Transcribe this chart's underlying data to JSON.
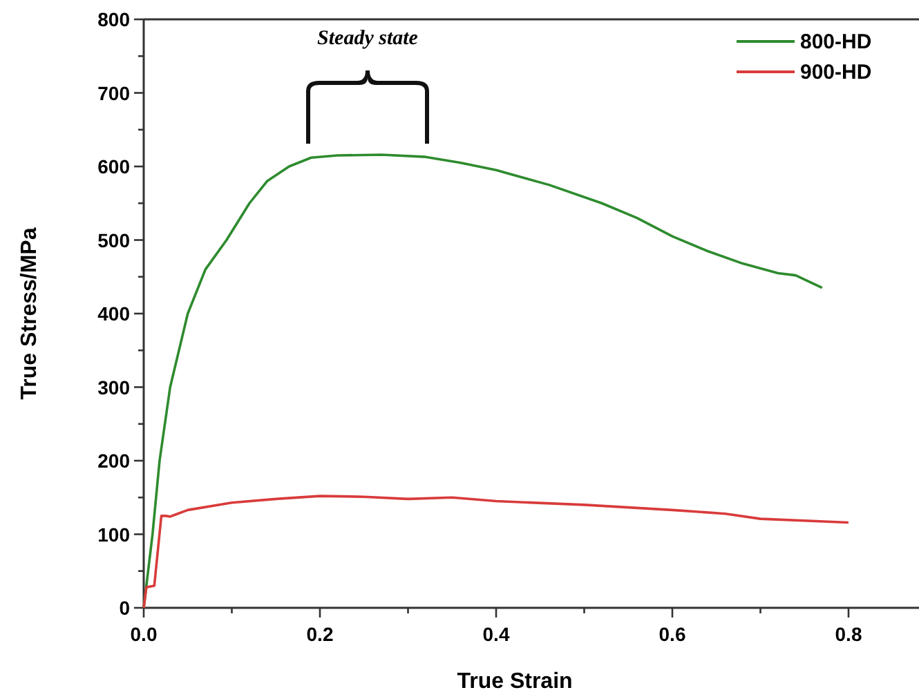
{
  "chart_data": {
    "type": "line",
    "xlabel": "True Strain",
    "ylabel": "True Stress/MPa",
    "xlim": [
      0,
      0.88
    ],
    "ylim": [
      0,
      800
    ],
    "xticks": [
      {
        "value": 0,
        "label": "0.0"
      },
      {
        "value": 0.1,
        "label": null
      },
      {
        "value": 0.2,
        "label": "0.2"
      },
      {
        "value": 0.3,
        "label": null
      },
      {
        "value": 0.4,
        "label": "0.4"
      },
      {
        "value": 0.5,
        "label": null
      },
      {
        "value": 0.6,
        "label": "0.6"
      },
      {
        "value": 0.7,
        "label": null
      },
      {
        "value": 0.8,
        "label": "0.8"
      }
    ],
    "yticks": [
      0,
      {
        "value": 50,
        "label": null
      },
      100,
      {
        "value": 150,
        "label": null
      },
      200,
      {
        "value": 250,
        "label": null
      },
      300,
      {
        "value": 350,
        "label": null
      },
      400,
      {
        "value": 450,
        "label": null
      },
      500,
      {
        "value": 550,
        "label": null
      },
      600,
      {
        "value": 650,
        "label": null
      },
      700,
      {
        "value": 750,
        "label": null
      },
      800
    ],
    "grid": false,
    "legend": "top right",
    "marker": "none",
    "line_style": "solid",
    "annotations": [
      "Steady state"
    ],
    "series": [
      {
        "name": "800-HD",
        "color": "#2e8b2e",
        "x": [
          0,
          0.01,
          0.018,
          0.03,
          0.05,
          0.07,
          0.094,
          0.12,
          0.14,
          0.165,
          0.19,
          0.22,
          0.27,
          0.32,
          0.36,
          0.4,
          0.46,
          0.52,
          0.56,
          0.6,
          0.64,
          0.68,
          0.72,
          0.74,
          0.77
        ],
        "values": [
          0,
          100,
          200,
          300,
          400,
          460,
          500,
          550,
          580,
          600,
          612,
          615,
          616,
          613,
          605,
          595,
          575,
          550,
          530,
          505,
          485,
          468,
          455,
          452,
          435
        ]
      },
      {
        "name": "900-HD",
        "color": "#d93b3b",
        "x": [
          0,
          0.003,
          0.012,
          0.02,
          0.025,
          0.03,
          0.05,
          0.1,
          0.15,
          0.2,
          0.25,
          0.3,
          0.35,
          0.4,
          0.5,
          0.6,
          0.66,
          0.7,
          0.8
        ],
        "values": [
          0,
          28,
          30,
          125,
          125,
          124,
          133,
          143,
          148,
          152,
          151,
          148,
          150,
          145,
          140,
          133,
          128,
          121,
          116
        ]
      }
    ]
  }
}
